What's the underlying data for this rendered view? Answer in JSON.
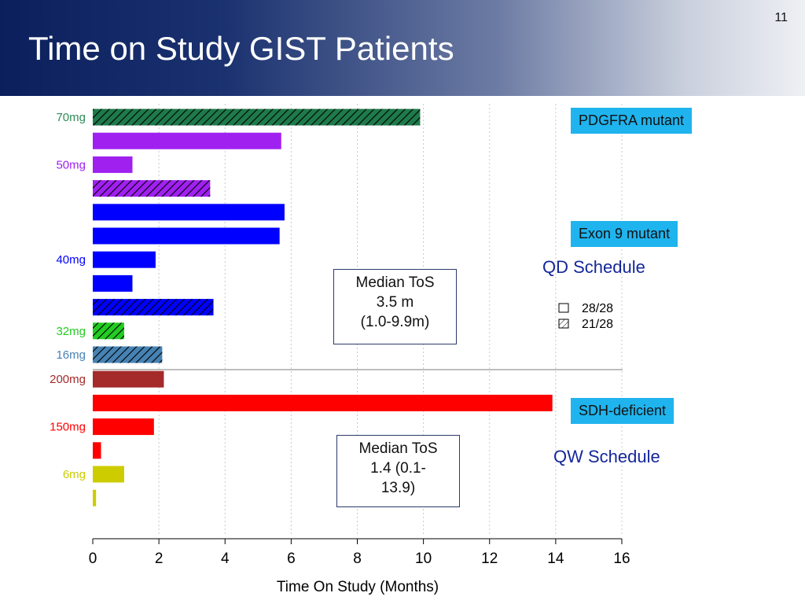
{
  "slide": {
    "title": "Time on Study GIST Patients",
    "page_number": "11"
  },
  "callouts": {
    "pdgfra": "PDGFRA mutant",
    "exon9": "Exon 9 mutant",
    "sdh": "SDH-deficient"
  },
  "schedules": {
    "qd": "QD Schedule",
    "qw": "QW Schedule"
  },
  "median_qd": {
    "line1": "Median ToS",
    "line2": "3.5 m",
    "line3": "(1.0-9.9m)"
  },
  "median_qw": {
    "line1": "Median ToS",
    "line2": "1.4 (0.1-",
    "line3": "13.9)"
  },
  "chart_data": {
    "type": "bar",
    "orientation": "horizontal",
    "xlabel": "Time On Study (Months)",
    "xlim": [
      0,
      16
    ],
    "xticks": [
      0,
      2,
      4,
      6,
      8,
      10,
      12,
      14,
      16
    ],
    "grid": "vertical dotted",
    "dose_labels": [
      {
        "text": "70mg",
        "row": 0,
        "color": "#2e8b57"
      },
      {
        "text": "50mg",
        "row": 2,
        "color": "#a020f0"
      },
      {
        "text": "40mg",
        "row": 6,
        "color": "#0000ff"
      },
      {
        "text": "32mg",
        "row": 9,
        "color": "#22cc22"
      },
      {
        "text": "16mg",
        "row": 10,
        "color": "#4682b4"
      },
      {
        "text": "200mg",
        "row": 11,
        "color": "#a52a2a"
      },
      {
        "text": "150mg",
        "row": 13,
        "color": "#ff0000"
      },
      {
        "text": "6mg",
        "row": 15,
        "color": "#cccc00"
      }
    ],
    "bars": [
      {
        "dose": "70mg",
        "value": 9.9,
        "color": "#1e7a4a",
        "hatched": true,
        "schedule": "QD"
      },
      {
        "dose": "50mg",
        "value": 5.7,
        "color": "#a020f0",
        "hatched": false,
        "schedule": "QD"
      },
      {
        "dose": "50mg",
        "value": 1.2,
        "color": "#a020f0",
        "hatched": false,
        "schedule": "QD"
      },
      {
        "dose": "50mg",
        "value": 3.55,
        "color": "#a020f0",
        "hatched": true,
        "schedule": "QD"
      },
      {
        "dose": "40mg",
        "value": 5.8,
        "color": "#0000ff",
        "hatched": false,
        "schedule": "QD"
      },
      {
        "dose": "40mg",
        "value": 5.65,
        "color": "#0000ff",
        "hatched": false,
        "schedule": "QD"
      },
      {
        "dose": "40mg",
        "value": 1.9,
        "color": "#0000ff",
        "hatched": false,
        "schedule": "QD"
      },
      {
        "dose": "40mg",
        "value": 1.2,
        "color": "#0000ff",
        "hatched": false,
        "schedule": "QD"
      },
      {
        "dose": "40mg",
        "value": 3.65,
        "color": "#0000ff",
        "hatched": true,
        "schedule": "QD"
      },
      {
        "dose": "32mg",
        "value": 0.95,
        "color": "#22cc22",
        "hatched": true,
        "schedule": "QD"
      },
      {
        "dose": "16mg",
        "value": 2.1,
        "color": "#4682b4",
        "hatched": true,
        "schedule": "QD"
      },
      {
        "dose": "200mg",
        "value": 2.15,
        "color": "#a52a2a",
        "hatched": false,
        "schedule": "QW"
      },
      {
        "dose": "150mg",
        "value": 13.9,
        "color": "#ff0000",
        "hatched": false,
        "schedule": "QW"
      },
      {
        "dose": "150mg",
        "value": 1.85,
        "color": "#ff0000",
        "hatched": false,
        "schedule": "QW"
      },
      {
        "dose": "150mg",
        "value": 0.25,
        "color": "#ff0000",
        "hatched": false,
        "schedule": "QW"
      },
      {
        "dose": "6mg",
        "value": 0.95,
        "color": "#cccc00",
        "hatched": false,
        "schedule": "QW"
      },
      {
        "dose": "6mg",
        "value": 0.1,
        "color": "#cccc00",
        "hatched": false,
        "schedule": "QW"
      }
    ],
    "legend": [
      {
        "label": "28/28",
        "hatched": false
      },
      {
        "label": "21/28",
        "hatched": true
      }
    ]
  }
}
